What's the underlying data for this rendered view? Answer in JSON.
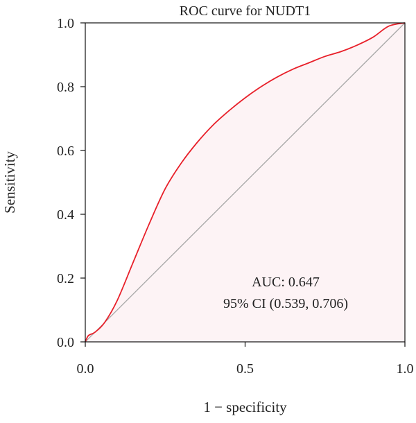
{
  "chart_data": {
    "type": "line",
    "title": "ROC curve for NUDT1",
    "xlabel": "1 − specificity",
    "ylabel": "Sensitivity",
    "xlim": [
      0,
      1
    ],
    "ylim": [
      0,
      1
    ],
    "x_ticks": [
      "0.0",
      "0.5",
      "1.0"
    ],
    "y_ticks": [
      "0.0",
      "0.2",
      "0.4",
      "0.6",
      "0.8",
      "1.0"
    ],
    "x_tick_values": [
      0,
      0.5,
      1
    ],
    "y_tick_values": [
      0,
      0.2,
      0.4,
      0.6,
      0.8,
      1
    ],
    "grid": false,
    "series": [
      {
        "color": "#e8202a",
        "x": [
          0,
          0.01,
          0.03,
          0.06,
          0.1,
          0.15,
          0.2,
          0.25,
          0.3,
          0.35,
          0.4,
          0.45,
          0.5,
          0.55,
          0.6,
          0.65,
          0.7,
          0.75,
          0.8,
          0.85,
          0.9,
          0.95,
          1.0
        ],
        "y": [
          0,
          0.02,
          0.03,
          0.06,
          0.13,
          0.25,
          0.37,
          0.48,
          0.56,
          0.625,
          0.68,
          0.725,
          0.765,
          0.8,
          0.83,
          0.855,
          0.875,
          0.895,
          0.91,
          0.93,
          0.955,
          0.99,
          1.0
        ]
      }
    ],
    "reference_line": {
      "x": [
        0,
        1
      ],
      "y": [
        0,
        1
      ],
      "color": "#a6a6a6"
    },
    "fill_color": "#fdf3f5",
    "annotations": [
      "AUC: 0.647",
      "95% CI (0.539, 0.706)"
    ]
  }
}
